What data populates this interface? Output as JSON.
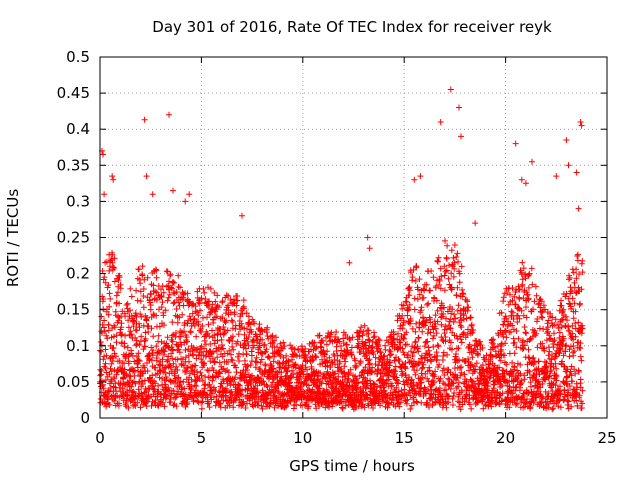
{
  "chart_data": {
    "type": "scatter",
    "title": "Day 301 of 2016, Rate Of TEC Index for receiver reyk",
    "xlabel": "GPS time / hours",
    "ylabel": "ROTI / TECUs",
    "xlim": [
      0,
      25
    ],
    "ylim": [
      0,
      0.5
    ],
    "xticks": [
      0,
      5,
      10,
      15,
      20,
      25
    ],
    "yticks": [
      0,
      0.05,
      0.1,
      0.15,
      0.2,
      0.25,
      0.3,
      0.35,
      0.4,
      0.45,
      0.5
    ],
    "xtick_labels": [
      "0",
      "5",
      "10",
      "15",
      "20",
      "25"
    ],
    "ytick_labels": [
      "0",
      "0.05",
      "0.1",
      "0.15",
      "0.2",
      "0.25",
      "0.3",
      "0.35",
      "0.4",
      "0.45",
      "0.5"
    ],
    "grid": true,
    "marker": "+",
    "marker_color": "#ff0000",
    "series": [
      {
        "name": "ROTI",
        "note": "dense cloud of samples; representative envelope listed as [hour, typical_max]",
        "envelope": [
          [
            0.0,
            0.2
          ],
          [
            0.5,
            0.24
          ],
          [
            1.0,
            0.2
          ],
          [
            1.5,
            0.19
          ],
          [
            2.0,
            0.22
          ],
          [
            2.5,
            0.21
          ],
          [
            3.0,
            0.22
          ],
          [
            3.5,
            0.2
          ],
          [
            4.0,
            0.2
          ],
          [
            4.5,
            0.16
          ],
          [
            5.0,
            0.19
          ],
          [
            5.5,
            0.18
          ],
          [
            6.0,
            0.17
          ],
          [
            6.5,
            0.17
          ],
          [
            7.0,
            0.17
          ],
          [
            7.5,
            0.14
          ],
          [
            8.0,
            0.13
          ],
          [
            8.5,
            0.12
          ],
          [
            9.0,
            0.11
          ],
          [
            9.5,
            0.1
          ],
          [
            10.0,
            0.1
          ],
          [
            10.5,
            0.11
          ],
          [
            11.0,
            0.12
          ],
          [
            11.5,
            0.12
          ],
          [
            12.0,
            0.12
          ],
          [
            12.5,
            0.12
          ],
          [
            13.0,
            0.13
          ],
          [
            13.5,
            0.12
          ],
          [
            14.0,
            0.1
          ],
          [
            14.5,
            0.13
          ],
          [
            15.0,
            0.17
          ],
          [
            15.5,
            0.23
          ],
          [
            16.0,
            0.2
          ],
          [
            16.5,
            0.22
          ],
          [
            17.0,
            0.25
          ],
          [
            17.5,
            0.24
          ],
          [
            18.0,
            0.2
          ],
          [
            18.5,
            0.12
          ],
          [
            19.0,
            0.09
          ],
          [
            19.5,
            0.12
          ],
          [
            20.0,
            0.18
          ],
          [
            20.5,
            0.19
          ],
          [
            21.0,
            0.23
          ],
          [
            21.5,
            0.2
          ],
          [
            22.0,
            0.15
          ],
          [
            22.5,
            0.14
          ],
          [
            23.0,
            0.19
          ],
          [
            23.5,
            0.23
          ],
          [
            23.8,
            0.22
          ]
        ],
        "outliers": [
          [
            0.1,
            0.37
          ],
          [
            0.15,
            0.365
          ],
          [
            0.2,
            0.31
          ],
          [
            0.6,
            0.335
          ],
          [
            0.65,
            0.33
          ],
          [
            2.2,
            0.413
          ],
          [
            2.3,
            0.335
          ],
          [
            2.6,
            0.31
          ],
          [
            3.4,
            0.42
          ],
          [
            3.6,
            0.315
          ],
          [
            4.2,
            0.3
          ],
          [
            4.4,
            0.31
          ],
          [
            7.0,
            0.28
          ],
          [
            12.3,
            0.215
          ],
          [
            13.2,
            0.25
          ],
          [
            13.3,
            0.235
          ],
          [
            15.5,
            0.33
          ],
          [
            15.8,
            0.335
          ],
          [
            16.8,
            0.41
          ],
          [
            17.3,
            0.455
          ],
          [
            17.7,
            0.43
          ],
          [
            17.8,
            0.39
          ],
          [
            18.5,
            0.27
          ],
          [
            20.5,
            0.38
          ],
          [
            20.8,
            0.33
          ],
          [
            21.0,
            0.325
          ],
          [
            21.3,
            0.355
          ],
          [
            22.5,
            0.335
          ],
          [
            23.0,
            0.385
          ],
          [
            23.1,
            0.35
          ],
          [
            23.5,
            0.34
          ],
          [
            23.7,
            0.41
          ],
          [
            23.75,
            0.405
          ],
          [
            23.6,
            0.29
          ]
        ]
      }
    ]
  }
}
